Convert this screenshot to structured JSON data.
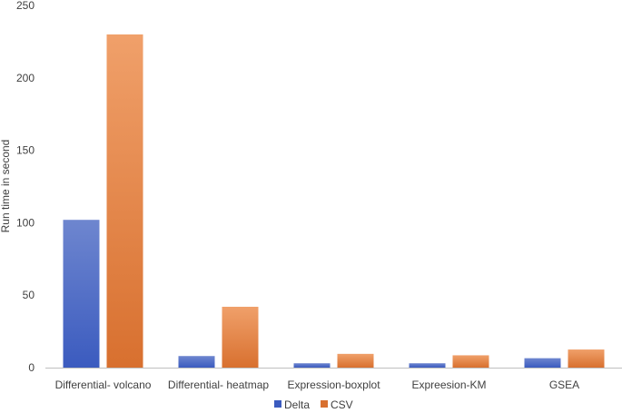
{
  "chart_data": {
    "type": "bar",
    "title": "",
    "xlabel": "",
    "ylabel": "Run time in second",
    "categories": [
      "Differential- volcano",
      "Differential- heatmap",
      "Expression-boxplot",
      "Expreesion-KM",
      "GSEA"
    ],
    "series": [
      {
        "name": "Delta",
        "values": [
          102,
          8,
          3,
          3,
          6.5
        ]
      },
      {
        "name": "CSV",
        "values": [
          230,
          42,
          9.5,
          8.5,
          12.5
        ]
      }
    ],
    "ylim": [
      0,
      250
    ],
    "yticks": [
      0,
      50,
      100,
      150,
      200,
      250
    ],
    "grid": false,
    "legend_position": "bottom",
    "colors": {
      "Delta": {
        "top": "#6e86cf",
        "bottom": "#3b5bbf"
      },
      "CSV": {
        "top": "#f0a06a",
        "bottom": "#d8702f"
      },
      "axis": "#bfbfbf"
    }
  }
}
